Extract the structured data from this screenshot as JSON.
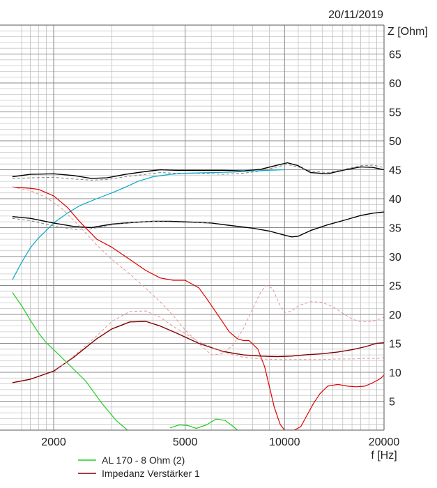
{
  "date": "20/11/2019",
  "chart_data": {
    "type": "line",
    "title": "",
    "ylabel": "Z [Ohm]",
    "xlabel": "f [Hz]",
    "xscale": "log",
    "xlim": [
      1500,
      20000
    ],
    "ylim": [
      0,
      70
    ],
    "grid": true,
    "x_ticks": [
      {
        "value": 2000,
        "label": "2000"
      },
      {
        "value": 5000,
        "label": "5000"
      },
      {
        "value": 10000,
        "label": "10000"
      },
      {
        "value": 20000,
        "label": "20000"
      }
    ],
    "y_ticks": [
      {
        "value": 5,
        "label": "5"
      },
      {
        "value": 10,
        "label": "10"
      },
      {
        "value": 15,
        "label": "15"
      },
      {
        "value": 20,
        "label": "20"
      },
      {
        "value": 25,
        "label": "25"
      },
      {
        "value": 30,
        "label": "30"
      },
      {
        "value": 35,
        "label": "35"
      },
      {
        "value": 40,
        "label": "40"
      },
      {
        "value": 45,
        "label": "45"
      },
      {
        "value": 50,
        "label": "50"
      },
      {
        "value": 55,
        "label": "55"
      },
      {
        "value": 60,
        "label": "60"
      },
      {
        "value": 65,
        "label": "65"
      }
    ],
    "legend": [
      {
        "name": "AL 170 - 8 Ohm (2)",
        "color": "#22cc22"
      },
      {
        "name": "Impedanz Verstärker 1",
        "color": "#800000"
      }
    ],
    "series": [
      {
        "color": "#000000",
        "style": "solid",
        "width": 1.4,
        "x": [
          1500,
          1700,
          2000,
          2300,
          2600,
          2900,
          3300,
          3800,
          4200,
          4700,
          5500,
          6500,
          7500,
          8500,
          9500,
          10200,
          11000,
          12000,
          13500,
          15000,
          17000,
          18500,
          20000
        ],
        "y": [
          43.8,
          44.2,
          44.3,
          44.0,
          43.5,
          43.6,
          44.2,
          44.7,
          45.0,
          44.9,
          44.9,
          44.9,
          44.8,
          45.1,
          45.8,
          46.2,
          45.7,
          44.5,
          44.3,
          44.9,
          45.5,
          45.4,
          45.0
        ]
      },
      {
        "color": "#808080",
        "style": "dashed",
        "width": 1,
        "x": [
          1500,
          1700,
          2000,
          2300,
          2600,
          2900,
          3300,
          3800,
          4200,
          4700,
          5500,
          6500,
          7500,
          8500,
          9500,
          10200,
          11000,
          12000,
          13500,
          15000,
          17000,
          18500,
          20000
        ],
        "y": [
          43.5,
          43.6,
          43.7,
          43.4,
          43.2,
          43.3,
          43.8,
          44.2,
          44.5,
          44.4,
          44.4,
          44.2,
          44.4,
          44.8,
          45.5,
          45.9,
          45.5,
          44.8,
          44.5,
          45.0,
          45.7,
          45.8,
          45.4
        ]
      },
      {
        "color": "#00aacc",
        "style": "solid",
        "width": 1.2,
        "x": [
          1500,
          1600,
          1700,
          1800,
          1900,
          2000,
          2200,
          2400,
          2700,
          3000,
          3300,
          3600,
          4000,
          4500,
          5000,
          6000,
          7000,
          8000,
          9000,
          10000
        ],
        "y": [
          26.0,
          29.0,
          31.5,
          33.2,
          34.5,
          35.8,
          37.5,
          38.8,
          40.0,
          41.0,
          42.0,
          43.0,
          43.8,
          44.2,
          44.4,
          44.5,
          44.6,
          44.8,
          44.9,
          45.0
        ]
      },
      {
        "color": "#000000",
        "style": "solid",
        "width": 1.4,
        "x": [
          1500,
          1700,
          2000,
          2300,
          2600,
          3000,
          3500,
          4000,
          4500,
          5000,
          6000,
          7000,
          8000,
          9000,
          10000,
          10500,
          11000,
          12000,
          13500,
          15000,
          17000,
          18500,
          20000
        ],
        "y": [
          36.9,
          36.6,
          35.8,
          35.2,
          35.0,
          35.6,
          35.9,
          36.1,
          36.1,
          36.0,
          35.8,
          35.3,
          34.9,
          34.4,
          33.7,
          33.4,
          33.5,
          34.5,
          35.5,
          36.2,
          37.1,
          37.5,
          37.7
        ]
      },
      {
        "color": "#808080",
        "style": "dashed",
        "width": 1,
        "x": [
          1500,
          1700,
          2000,
          2300,
          2600,
          3000,
          3500,
          4000,
          4500,
          5000,
          6000
        ],
        "y": [
          36.6,
          36.2,
          35.3,
          34.7,
          34.8,
          35.5,
          35.9,
          36.1,
          36.0,
          35.9,
          35.8
        ]
      },
      {
        "color": "#dd0000",
        "style": "solid",
        "width": 1.2,
        "x": [
          1500,
          1700,
          1800,
          2000,
          2200,
          2400,
          2700,
          3000,
          3400,
          3800,
          4200,
          4600,
          5000,
          5500,
          5800,
          6300,
          6800,
          7200,
          7500,
          7800,
          8300,
          8700,
          9000,
          9300,
          9700,
          10000,
          10300,
          10700,
          11200,
          11700,
          12200,
          12800,
          13500,
          14500,
          15500,
          16500,
          17500,
          18500,
          19500,
          20000
        ],
        "y": [
          42.0,
          41.8,
          41.6,
          40.5,
          38.5,
          36.0,
          33.0,
          31.6,
          29.5,
          27.6,
          26.3,
          25.9,
          25.9,
          24.6,
          22.8,
          19.8,
          17.0,
          15.8,
          15.5,
          15.5,
          14.0,
          11.0,
          7.5,
          4.0,
          1.0,
          0,
          0,
          0,
          0.6,
          2.6,
          4.5,
          6.3,
          7.6,
          7.9,
          7.6,
          7.5,
          7.6,
          8.2,
          8.9,
          9.5
        ]
      },
      {
        "color": "#e09999",
        "style": "dashed",
        "width": 1,
        "x": [
          1500,
          1700,
          1900,
          2100,
          2400,
          2700,
          3000,
          3400,
          3800,
          4200,
          4600,
          5000,
          5500,
          6000,
          6500,
          7000,
          7500,
          8000,
          8500,
          8800,
          9200,
          9600,
          10000,
          10500,
          11000,
          12000,
          13000,
          14000,
          15000,
          16000,
          17000,
          18500,
          20000
        ],
        "y": [
          42.0,
          41.4,
          40.2,
          38.5,
          35.2,
          32.0,
          29.5,
          27.0,
          24.5,
          22.2,
          19.8,
          17.3,
          15.0,
          13.0,
          13.2,
          14.8,
          17.5,
          21.0,
          24.0,
          25.0,
          24.5,
          22.0,
          20.3,
          20.6,
          21.5,
          22.2,
          22.1,
          21.3,
          20.2,
          19.2,
          18.7,
          18.8,
          19.5
        ]
      },
      {
        "color": "#22cc22",
        "style": "solid",
        "width": 1.2,
        "x": [
          1500,
          1600,
          1700,
          1800,
          1900,
          2000,
          2200,
          2500,
          2800,
          3100,
          3300,
          3500,
          3700
        ],
        "y": [
          23.8,
          21.5,
          19.0,
          16.8,
          15.1,
          13.9,
          11.6,
          8.5,
          4.6,
          1.6,
          0.3,
          -1,
          -1
        ]
      },
      {
        "color": "#22cc22",
        "style": "solid",
        "width": 1.2,
        "x": [
          4500,
          4800,
          5100,
          5400,
          5800,
          6200,
          6600,
          7000,
          7200
        ],
        "y": [
          0.4,
          0.9,
          0.8,
          0.3,
          0.9,
          1.9,
          1.7,
          0.6,
          0
        ]
      },
      {
        "color": "#800000",
        "style": "solid",
        "width": 1.4,
        "x": [
          1500,
          1700,
          2000,
          2300,
          2700,
          3000,
          3400,
          3800,
          4200,
          4700,
          5500,
          6500,
          7500,
          8500,
          9500,
          10500,
          11500,
          13000,
          14500,
          16000,
          17500,
          19000,
          20000
        ],
        "y": [
          8.2,
          8.8,
          10.2,
          12.6,
          15.8,
          17.5,
          18.7,
          18.8,
          18.0,
          16.8,
          15.0,
          13.6,
          13.0,
          12.8,
          12.7,
          12.8,
          13.0,
          13.2,
          13.5,
          13.9,
          14.4,
          15.0,
          15.1
        ]
      },
      {
        "color": "#e09999",
        "style": "dashed",
        "width": 1,
        "x": [
          2000,
          2300,
          2700,
          3000,
          3400,
          3800,
          4200,
          4700,
          5500,
          6500,
          7500,
          8500,
          9500,
          10500,
          11500,
          13000,
          14500,
          16000,
          17500,
          19000,
          20000
        ],
        "y": [
          10.0,
          12.8,
          16.3,
          18.8,
          20.5,
          20.6,
          19.5,
          17.6,
          15.3,
          13.5,
          12.6,
          12.3,
          12.2,
          12.2,
          12.2,
          12.2,
          12.3,
          12.3,
          12.4,
          12.4,
          12.5
        ]
      }
    ]
  }
}
